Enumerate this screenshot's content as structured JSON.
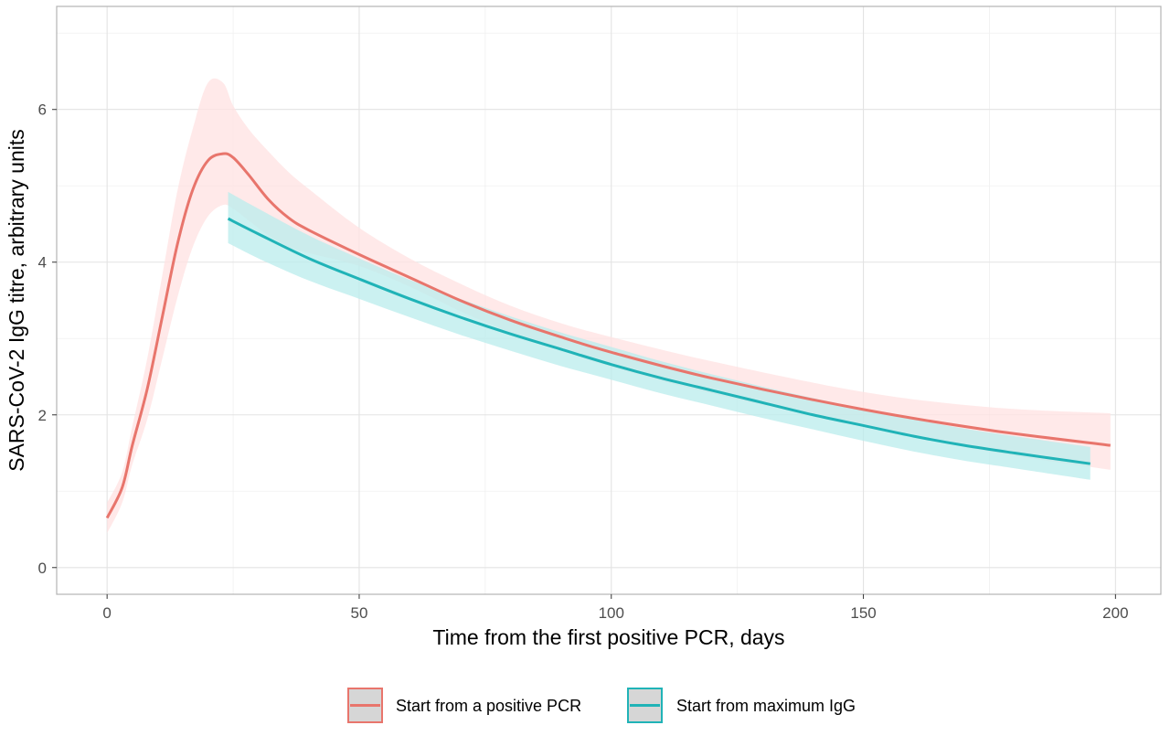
{
  "chart_data": {
    "type": "line",
    "xlabel": "Time from the first positive PCR, days",
    "ylabel": "SARS-CoV-2 IgG titre, arbitrary units",
    "xlim": [
      -10,
      209
    ],
    "ylim": [
      -0.35,
      7.35
    ],
    "x_ticks": [
      0,
      50,
      100,
      150,
      200
    ],
    "y_ticks": [
      0,
      2,
      4,
      6
    ],
    "grid": true,
    "legend_position": "bottom",
    "series": [
      {
        "name": "Start from a positive PCR",
        "color": "#e8756c",
        "ribbon_color": "#ffe1e1",
        "x": [
          0,
          3,
          5,
          8,
          11,
          14,
          17,
          20,
          23,
          25,
          28,
          32,
          36,
          40,
          50,
          60,
          70,
          80,
          90,
          100,
          120,
          150,
          175,
          199
        ],
        "y": [
          0.65,
          1.05,
          1.6,
          2.35,
          3.3,
          4.25,
          4.95,
          5.33,
          5.42,
          5.37,
          5.15,
          4.82,
          4.58,
          4.42,
          4.1,
          3.8,
          3.5,
          3.24,
          3.02,
          2.82,
          2.48,
          2.07,
          1.8,
          1.6
        ],
        "lower": [
          0.45,
          0.85,
          1.35,
          1.95,
          2.75,
          3.55,
          4.2,
          4.6,
          4.75,
          4.7,
          4.55,
          4.35,
          4.2,
          4.12,
          3.95,
          3.68,
          3.36,
          3.08,
          2.84,
          2.63,
          2.28,
          1.85,
          1.52,
          1.28
        ],
        "upper": [
          0.85,
          1.25,
          1.85,
          2.75,
          3.85,
          4.95,
          5.75,
          6.35,
          6.35,
          6.05,
          5.75,
          5.45,
          5.18,
          4.96,
          4.45,
          4.05,
          3.72,
          3.43,
          3.2,
          3.02,
          2.7,
          2.3,
          2.1,
          2.02
        ]
      },
      {
        "name": "Start from maximum IgG",
        "color": "#20b3b7",
        "ribbon_color": "#b9ecec",
        "x": [
          24,
          30,
          40,
          50,
          60,
          70,
          80,
          90,
          100,
          110,
          120,
          130,
          140,
          150,
          160,
          170,
          180,
          195
        ],
        "y": [
          4.57,
          4.37,
          4.05,
          3.78,
          3.52,
          3.28,
          3.06,
          2.86,
          2.66,
          2.48,
          2.32,
          2.16,
          2.0,
          1.86,
          1.72,
          1.6,
          1.5,
          1.36
        ],
        "lower": [
          4.25,
          4.05,
          3.76,
          3.52,
          3.28,
          3.05,
          2.84,
          2.64,
          2.46,
          2.28,
          2.12,
          1.96,
          1.81,
          1.66,
          1.52,
          1.4,
          1.3,
          1.15
        ],
        "upper": [
          4.92,
          4.7,
          4.35,
          4.05,
          3.77,
          3.52,
          3.29,
          3.08,
          2.89,
          2.7,
          2.53,
          2.37,
          2.22,
          2.08,
          1.94,
          1.82,
          1.72,
          1.58
        ]
      }
    ]
  }
}
